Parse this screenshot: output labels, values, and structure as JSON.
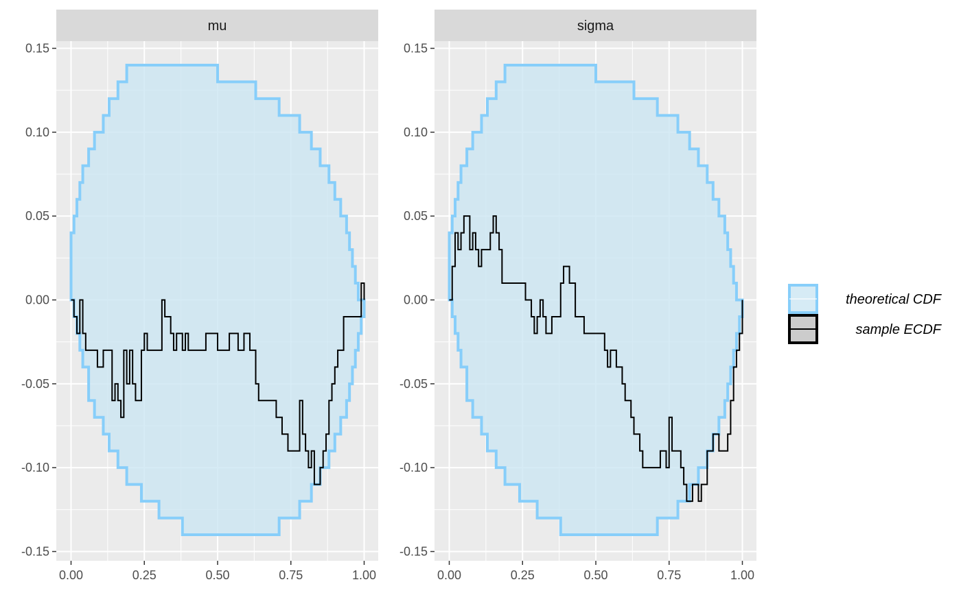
{
  "chart_data": {
    "type": "line",
    "legend_position": "right",
    "grid": true,
    "colors": {
      "panel_bg": "#EBEBEB",
      "strip_bg": "#D9D9D9",
      "grid": "#FFFFFF",
      "band_fill": "#CCE6F2",
      "band_line": "#87CEFA",
      "ecdf_line": "#000000",
      "tick_text": "#4D4D4D"
    },
    "legend": [
      {
        "label": "theoretical CDF",
        "style": "band"
      },
      {
        "label": "sample ECDF",
        "style": "line"
      }
    ],
    "x_ticks": [
      "0.00",
      "0.25",
      "0.50",
      "0.75",
      "1.00"
    ],
    "y_ticks": [
      "-0.15",
      "-0.10",
      "-0.05",
      "0.00",
      "0.05",
      "0.10",
      "0.15"
    ],
    "xlim": [
      0,
      1
    ],
    "ylim": [
      -0.15,
      0.15
    ],
    "panels": [
      {
        "title": "mu",
        "band_x": [
          0,
          0.01,
          0.02,
          0.03,
          0.04,
          0.06,
          0.08,
          0.11,
          0.13,
          0.16,
          0.19,
          0.24,
          0.3,
          0.38,
          0.5,
          0.63,
          0.71,
          0.78,
          0.82,
          0.85,
          0.88,
          0.9,
          0.92,
          0.94,
          0.95,
          0.96,
          0.97,
          0.98,
          0.99,
          1.0
        ],
        "band_upper": [
          0.04,
          0.05,
          0.06,
          0.07,
          0.08,
          0.09,
          0.1,
          0.11,
          0.12,
          0.13,
          0.14,
          0.14,
          0.14,
          0.14,
          0.13,
          0.12,
          0.11,
          0.1,
          0.09,
          0.08,
          0.07,
          0.06,
          0.05,
          0.04,
          0.03,
          0.02,
          0.01,
          0.0,
          0.0,
          0.0
        ],
        "band_lower": [
          0.0,
          -0.01,
          -0.02,
          -0.03,
          -0.04,
          -0.06,
          -0.07,
          -0.08,
          -0.09,
          -0.1,
          -0.11,
          -0.12,
          -0.13,
          -0.14,
          -0.14,
          -0.14,
          -0.13,
          -0.12,
          -0.11,
          -0.1,
          -0.09,
          -0.08,
          -0.07,
          -0.06,
          -0.05,
          -0.04,
          -0.03,
          -0.02,
          -0.01,
          0.0
        ],
        "ecdf_x": [
          0,
          0.01,
          0.02,
          0.03,
          0.04,
          0.05,
          0.06,
          0.09,
          0.11,
          0.14,
          0.15,
          0.16,
          0.17,
          0.18,
          0.19,
          0.2,
          0.21,
          0.22,
          0.24,
          0.25,
          0.26,
          0.28,
          0.31,
          0.32,
          0.34,
          0.35,
          0.36,
          0.38,
          0.39,
          0.4,
          0.42,
          0.43,
          0.46,
          0.48,
          0.5,
          0.54,
          0.57,
          0.59,
          0.61,
          0.63,
          0.64,
          0.65,
          0.66,
          0.7,
          0.72,
          0.74,
          0.75,
          0.78,
          0.79,
          0.8,
          0.81,
          0.82,
          0.83,
          0.84,
          0.85,
          0.86,
          0.87,
          0.88,
          0.89,
          0.9,
          0.91,
          0.93,
          0.96,
          0.99,
          1.0
        ],
        "ecdf_y": [
          0.0,
          -0.01,
          -0.02,
          0.0,
          -0.02,
          -0.03,
          -0.03,
          -0.04,
          -0.03,
          -0.06,
          -0.05,
          -0.06,
          -0.07,
          -0.03,
          -0.05,
          -0.03,
          -0.05,
          -0.06,
          -0.03,
          -0.02,
          -0.03,
          -0.03,
          0.0,
          -0.01,
          -0.02,
          -0.03,
          -0.02,
          -0.03,
          -0.02,
          -0.03,
          -0.03,
          -0.03,
          -0.02,
          -0.02,
          -0.03,
          -0.02,
          -0.03,
          -0.02,
          -0.03,
          -0.05,
          -0.06,
          -0.06,
          -0.06,
          -0.07,
          -0.08,
          -0.09,
          -0.09,
          -0.06,
          -0.08,
          -0.09,
          -0.1,
          -0.09,
          -0.11,
          -0.11,
          -0.1,
          -0.09,
          -0.08,
          -0.06,
          -0.05,
          -0.04,
          -0.03,
          -0.01,
          -0.01,
          0.01,
          0.0
        ]
      },
      {
        "title": "sigma",
        "band_x": [
          0,
          0.01,
          0.02,
          0.03,
          0.04,
          0.06,
          0.08,
          0.11,
          0.13,
          0.16,
          0.19,
          0.24,
          0.3,
          0.38,
          0.5,
          0.63,
          0.71,
          0.78,
          0.82,
          0.85,
          0.88,
          0.9,
          0.92,
          0.94,
          0.95,
          0.96,
          0.97,
          0.98,
          0.99,
          1.0
        ],
        "band_upper": [
          0.04,
          0.05,
          0.06,
          0.07,
          0.08,
          0.09,
          0.1,
          0.11,
          0.12,
          0.13,
          0.14,
          0.14,
          0.14,
          0.14,
          0.13,
          0.12,
          0.11,
          0.1,
          0.09,
          0.08,
          0.07,
          0.06,
          0.05,
          0.04,
          0.03,
          0.02,
          0.01,
          0.0,
          0.0,
          0.0
        ],
        "band_lower": [
          0.0,
          -0.01,
          -0.02,
          -0.03,
          -0.04,
          -0.06,
          -0.07,
          -0.08,
          -0.09,
          -0.1,
          -0.11,
          -0.12,
          -0.13,
          -0.14,
          -0.14,
          -0.14,
          -0.13,
          -0.12,
          -0.11,
          -0.1,
          -0.09,
          -0.08,
          -0.07,
          -0.06,
          -0.05,
          -0.04,
          -0.03,
          -0.02,
          -0.01,
          0.0
        ],
        "ecdf_x": [
          0,
          0.01,
          0.02,
          0.03,
          0.04,
          0.05,
          0.07,
          0.08,
          0.09,
          0.1,
          0.11,
          0.14,
          0.15,
          0.16,
          0.17,
          0.18,
          0.2,
          0.21,
          0.26,
          0.28,
          0.29,
          0.3,
          0.31,
          0.32,
          0.33,
          0.35,
          0.38,
          0.39,
          0.41,
          0.43,
          0.44,
          0.46,
          0.5,
          0.53,
          0.54,
          0.55,
          0.57,
          0.59,
          0.6,
          0.62,
          0.63,
          0.65,
          0.66,
          0.68,
          0.69,
          0.72,
          0.74,
          0.75,
          0.76,
          0.77,
          0.79,
          0.8,
          0.81,
          0.82,
          0.83,
          0.84,
          0.85,
          0.86,
          0.88,
          0.9,
          0.92,
          0.94,
          0.95,
          0.96,
          0.97,
          0.98,
          0.99,
          1.0
        ],
        "ecdf_y": [
          0.0,
          0.02,
          0.04,
          0.03,
          0.04,
          0.05,
          0.03,
          0.04,
          0.03,
          0.02,
          0.03,
          0.04,
          0.05,
          0.04,
          0.03,
          0.01,
          0.01,
          0.01,
          0.0,
          -0.01,
          -0.02,
          -0.01,
          0.0,
          -0.01,
          -0.02,
          -0.01,
          0.01,
          0.02,
          0.01,
          -0.01,
          -0.01,
          -0.02,
          -0.02,
          -0.03,
          -0.04,
          -0.03,
          -0.04,
          -0.05,
          -0.06,
          -0.07,
          -0.08,
          -0.09,
          -0.1,
          -0.1,
          -0.1,
          -0.09,
          -0.1,
          -0.07,
          -0.09,
          -0.09,
          -0.1,
          -0.11,
          -0.12,
          -0.12,
          -0.11,
          -0.11,
          -0.12,
          -0.11,
          -0.09,
          -0.08,
          -0.09,
          -0.09,
          -0.08,
          -0.06,
          -0.04,
          -0.03,
          -0.02,
          0.0
        ]
      }
    ]
  }
}
